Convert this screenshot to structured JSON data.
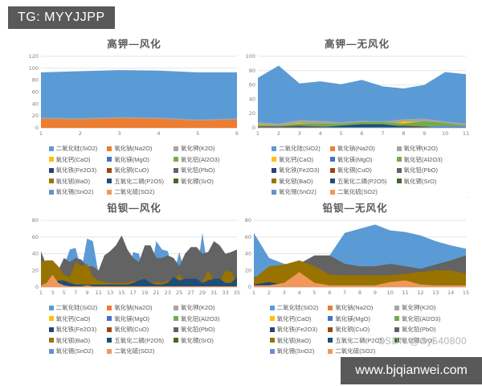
{
  "header": {
    "tag": "TG: MYYJJPP"
  },
  "watermark": {
    "text": "CSDN @Cy540800"
  },
  "footer": {
    "url": "www.bjqianwei.com"
  },
  "palette": {
    "SiO2": "#5B9BD5",
    "Na2O": "#ED7D31",
    "K2O": "#A5A5A5",
    "CaO": "#FFC000",
    "MgO": "#4472C4",
    "Al2O3": "#70AD47",
    "Fe2O3": "#264478",
    "CuO": "#9E480E",
    "PbO": "#636363",
    "BaO": "#997300",
    "P2O5": "#1F4E79",
    "SrO": "#43682B",
    "SnO2": "#698ED0",
    "SO2": "#F1975A"
  },
  "legend_items": [
    {
      "key": "SiO2",
      "label": "二氧化硅(SiO2)"
    },
    {
      "key": "Na2O",
      "label": "氧化钠(Na2O)"
    },
    {
      "key": "K2O",
      "label": "氧化钾(K2O)"
    },
    {
      "key": "CaO",
      "label": "氧化钙(CaO)"
    },
    {
      "key": "MgO",
      "label": "氧化镁(MgO)"
    },
    {
      "key": "Al2O3",
      "label": "氧化铝(Al2O3)"
    },
    {
      "key": "Fe2O3",
      "label": "氧化铁(Fe2O3)"
    },
    {
      "key": "CuO",
      "label": "氧化铜(CuO)"
    },
    {
      "key": "PbO",
      "label": "氧化铅(PbO)"
    },
    {
      "key": "BaO",
      "label": "氧化钡(BaO)"
    },
    {
      "key": "P2O5",
      "label": "五氧化二磷(P2O5)"
    },
    {
      "key": "SrO",
      "label": "氧化锶(SrO)"
    },
    {
      "key": "SnO2",
      "label": "氧化锡(SnO2)"
    },
    {
      "key": "SO2",
      "label": "二氧化硫(SO2)"
    }
  ],
  "chart_data": [
    {
      "type": "area",
      "title": "高钾—风化",
      "xlabel": "",
      "ylabel": "",
      "grid": true,
      "legend_position": "bottom",
      "ylim": [
        0,
        120
      ],
      "yticks": [
        0,
        20,
        40,
        60,
        80,
        100,
        120
      ],
      "x_labels": [
        "1",
        "2",
        "3",
        "4",
        "5",
        "6"
      ],
      "series": [
        {
          "name": "SiO2",
          "values": [
            93,
            95,
            97,
            96,
            93,
            93
          ]
        },
        {
          "name": "K2O",
          "values": [
            17,
            16,
            18,
            17,
            14,
            16
          ]
        },
        {
          "name": "Na2O",
          "values": [
            15,
            14,
            16,
            15,
            12,
            14
          ]
        }
      ]
    },
    {
      "type": "area",
      "title": "高钾—无风化",
      "xlabel": "",
      "ylabel": "",
      "grid": true,
      "legend_position": "bottom",
      "ylim": [
        0,
        100
      ],
      "yticks": [
        0,
        20,
        40,
        60,
        80,
        100
      ],
      "x_labels": [
        "1",
        "2",
        "3",
        "4",
        "5",
        "6",
        "7",
        "8",
        "9",
        "10",
        "11"
      ],
      "series": [
        {
          "name": "SiO2",
          "values": [
            70,
            87,
            62,
            65,
            61,
            67,
            58,
            55,
            60,
            78,
            75
          ]
        },
        {
          "name": "Na2O",
          "values": [
            2,
            1,
            3,
            2,
            1,
            1,
            1,
            3,
            2,
            1,
            1
          ]
        },
        {
          "name": "K2O",
          "values": [
            8,
            6,
            11,
            10,
            8,
            10,
            9,
            12,
            13,
            9,
            6
          ]
        },
        {
          "name": "CaO",
          "values": [
            5,
            3,
            7,
            5,
            3,
            4,
            4,
            9,
            8,
            3,
            2
          ]
        },
        {
          "name": "Al2O3",
          "values": [
            4,
            3,
            6,
            6,
            6,
            8,
            8,
            6,
            9,
            7,
            3
          ]
        },
        {
          "name": "CuO",
          "values": [
            2,
            2,
            3,
            2,
            1,
            1,
            1,
            3,
            2,
            1,
            1
          ]
        },
        {
          "name": "P2O5",
          "values": [
            1,
            1,
            2,
            1,
            3,
            5,
            5,
            2,
            1,
            1,
            1
          ]
        },
        {
          "name": "SnO2",
          "values": [
            1,
            1,
            1,
            1,
            1,
            1,
            1,
            1,
            1,
            3,
            2
          ]
        }
      ]
    },
    {
      "type": "area",
      "title": "铅钡—风化",
      "xlabel": "",
      "ylabel": "",
      "grid": true,
      "legend_position": "bottom",
      "ylim": [
        0,
        80
      ],
      "yticks": [
        0,
        20,
        40,
        60,
        80
      ],
      "x_labels": [
        "1",
        "",
        "3",
        "",
        "5",
        "",
        "7",
        "",
        "9",
        "",
        "11",
        "",
        "13",
        "",
        "15",
        "",
        "17",
        "",
        "19",
        "",
        "21",
        "",
        "23",
        "",
        "25",
        "",
        "27",
        "",
        "29",
        "",
        "31",
        "",
        "33",
        "",
        "35"
      ],
      "series": [
        {
          "name": "SiO2",
          "values": [
            10,
            8,
            10,
            12,
            25,
            45,
            47,
            20,
            58,
            55,
            15,
            20,
            15,
            18,
            20,
            15,
            42,
            40,
            12,
            15,
            55,
            45,
            43,
            15,
            42,
            15,
            12,
            15,
            65,
            20,
            50,
            45,
            15,
            12,
            18
          ]
        },
        {
          "name": "PbO",
          "values": [
            43,
            25,
            25,
            20,
            35,
            30,
            35,
            33,
            25,
            25,
            20,
            38,
            43,
            50,
            62,
            45,
            35,
            30,
            50,
            50,
            35,
            35,
            38,
            35,
            25,
            40,
            48,
            48,
            40,
            42,
            55,
            50,
            40,
            42,
            45
          ]
        },
        {
          "name": "BaO",
          "values": [
            30,
            32,
            32,
            25,
            15,
            12,
            30,
            25,
            28,
            12,
            8,
            6,
            5,
            5,
            5,
            5,
            8,
            6,
            5,
            5,
            6,
            5,
            8,
            8,
            15,
            6,
            5,
            6,
            6,
            20,
            8,
            6,
            20,
            18,
            6
          ]
        },
        {
          "name": "P2O5",
          "values": [
            3,
            3,
            3,
            8,
            8,
            5,
            3,
            3,
            3,
            3,
            3,
            3,
            3,
            3,
            3,
            3,
            5,
            8,
            10,
            5,
            3,
            3,
            5,
            12,
            8,
            10,
            10,
            10,
            5,
            8,
            10,
            10,
            5,
            5,
            12
          ]
        },
        {
          "name": "SO2",
          "values": [
            2,
            5,
            15,
            5,
            2,
            1,
            1,
            1,
            2,
            1,
            1,
            1,
            1,
            1,
            1,
            1,
            1,
            1,
            1,
            1,
            1,
            1,
            1,
            1,
            1,
            1,
            1,
            1,
            1,
            1,
            1,
            1,
            1,
            1,
            1
          ]
        }
      ]
    },
    {
      "type": "area",
      "title": "铅钡—无风化",
      "xlabel": "",
      "ylabel": "",
      "grid": true,
      "legend_position": "bottom",
      "ylim": [
        0,
        80
      ],
      "yticks": [
        0,
        20,
        40,
        60,
        80
      ],
      "x_labels": [
        "1",
        "2",
        "3",
        "4",
        "5",
        "6",
        "7",
        "8",
        "9",
        "10",
        "11",
        "12",
        "13",
        "14",
        "15"
      ],
      "series": [
        {
          "name": "SiO2",
          "values": [
            65,
            35,
            28,
            25,
            30,
            38,
            65,
            70,
            75,
            68,
            66,
            62,
            55,
            50,
            46
          ]
        },
        {
          "name": "PbO",
          "values": [
            12,
            15,
            20,
            28,
            38,
            38,
            28,
            25,
            25,
            28,
            25,
            22,
            27,
            32,
            38
          ]
        },
        {
          "name": "BaO",
          "values": [
            10,
            25,
            27,
            32,
            25,
            15,
            14,
            14,
            14,
            14,
            16,
            18,
            20,
            20,
            16
          ]
        },
        {
          "name": "Fe2O3",
          "values": [
            3,
            6,
            3,
            2,
            2,
            2,
            2,
            2,
            2,
            2,
            2,
            2,
            2,
            2,
            2
          ]
        },
        {
          "name": "SO2",
          "values": [
            2,
            2,
            5,
            18,
            5,
            2,
            2,
            2,
            2,
            6,
            8,
            3,
            2,
            2,
            2
          ]
        }
      ]
    }
  ]
}
